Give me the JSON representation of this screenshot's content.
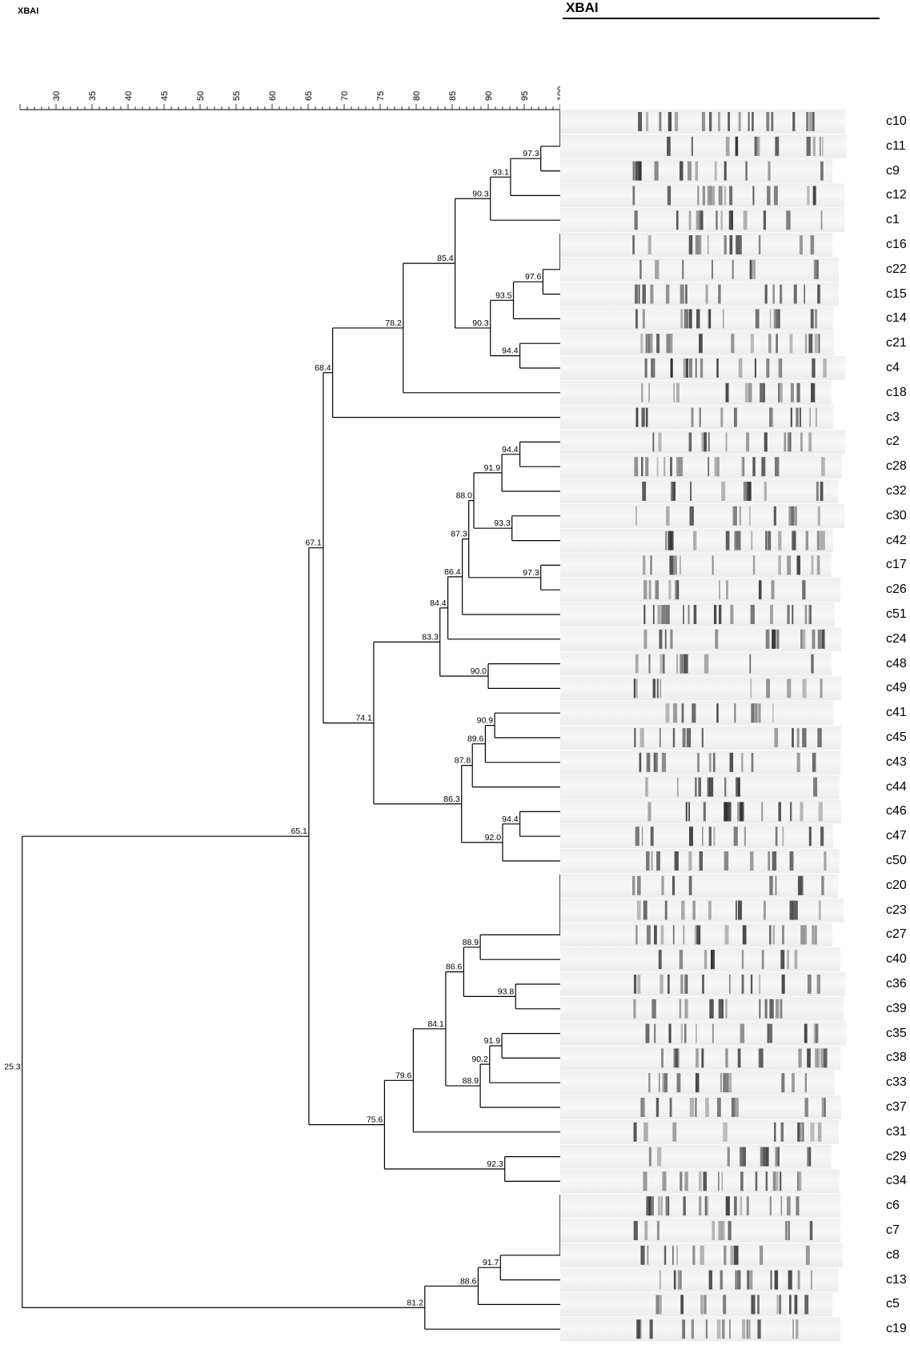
{
  "title_small": "XBAI",
  "gel_title": "XBAI",
  "scale": {
    "min": 25,
    "max": 100,
    "tick_labels": [
      30,
      35,
      40,
      45,
      50,
      55,
      60,
      65,
      70,
      75,
      80,
      85,
      90,
      95,
      100
    ]
  },
  "leaves": [
    "c10",
    "c11",
    "c9",
    "c12",
    "c1",
    "c16",
    "c22",
    "c15",
    "c14",
    "c21",
    "c4",
    "c18",
    "c3",
    "c2",
    "c28",
    "c32",
    "c30",
    "c42",
    "c17",
    "c26",
    "c51",
    "c24",
    "c48",
    "c49",
    "c41",
    "c45",
    "c43",
    "c44",
    "c46",
    "c47",
    "c50",
    "c20",
    "c23",
    "c27",
    "c40",
    "c36",
    "c39",
    "c35",
    "c38",
    "c33",
    "c37",
    "c31",
    "c29",
    "c34",
    "c6",
    "c7",
    "c8",
    "c13",
    "c5",
    "c19"
  ],
  "tree": [
    [
      "c11",
      "c9",
      97.3
    ],
    [
      "N0",
      "c12",
      93.1
    ],
    [
      "N1",
      "c1",
      90.3
    ],
    [
      "c22",
      "c15",
      97.6
    ],
    [
      "N3",
      "c14",
      93.5
    ],
    [
      "c21",
      "c4",
      94.4
    ],
    [
      "N4",
      "N5",
      90.3
    ],
    [
      "N2",
      "N6",
      85.4
    ],
    [
      "N7",
      "c18",
      78.2
    ],
    [
      "N8",
      "c3",
      68.4
    ],
    [
      "c2",
      "c28",
      94.4
    ],
    [
      "N10",
      "c32",
      91.9
    ],
    [
      "c30",
      "c42",
      93.3
    ],
    [
      "N11",
      "N12",
      88.0
    ],
    [
      "c17",
      "c26",
      97.3
    ],
    [
      "N13",
      "N14",
      87.3
    ],
    [
      "N15",
      "c51",
      86.4
    ],
    [
      "N16",
      "c24",
      84.4
    ],
    [
      "c48",
      "c49",
      90.0
    ],
    [
      "N17",
      "N18",
      83.3
    ],
    [
      "c41",
      "c45",
      90.9
    ],
    [
      "N20",
      "c43",
      89.6
    ],
    [
      "N21",
      "c44",
      87.8
    ],
    [
      "c46",
      "c47",
      94.4
    ],
    [
      "N23",
      "c50",
      92.0
    ],
    [
      "N22",
      "N24",
      86.3
    ],
    [
      "N19",
      "N25",
      74.1
    ],
    [
      "N9",
      "N26",
      67.1
    ],
    [
      "c40",
      "c27",
      88.9
    ],
    [
      "c36",
      "c39",
      93.8
    ],
    [
      "N28",
      "N29",
      86.6
    ],
    [
      "c35",
      "c38",
      91.9
    ],
    [
      "N31",
      "c33",
      90.2
    ],
    [
      "N32",
      "c37",
      88.9
    ],
    [
      "N30",
      "N33",
      84.1
    ],
    [
      "N34",
      "c31",
      79.6
    ],
    [
      "c29",
      "c34",
      92.3
    ],
    [
      "N35",
      "N36",
      75.6
    ],
    [
      "N27",
      "N37",
      65.1
    ],
    [
      "c8",
      "c13",
      91.7
    ],
    [
      "N39",
      "c5",
      88.6
    ],
    [
      "N40",
      "c19",
      81.2
    ],
    [
      "N38",
      "N41",
      25.3
    ]
  ],
  "identical_groups": [
    [
      "c10",
      "c11"
    ],
    [
      "c16",
      "c22"
    ],
    [
      "c20",
      "c23",
      "c27"
    ],
    [
      "c6",
      "c7",
      "c8"
    ]
  ]
}
